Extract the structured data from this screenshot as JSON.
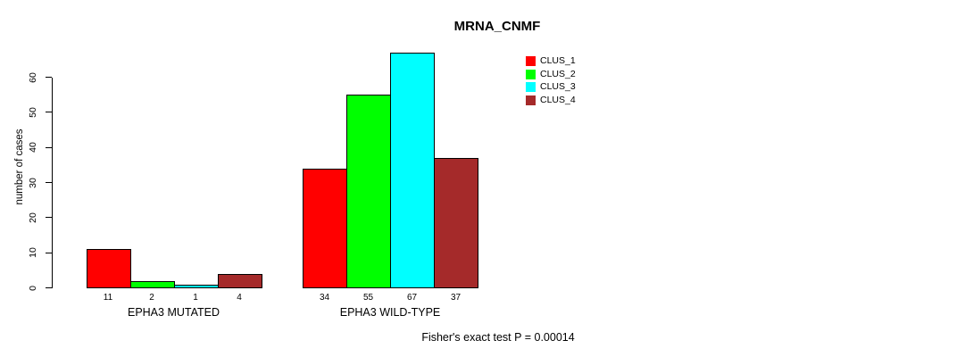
{
  "chart_data": {
    "type": "bar",
    "title": "MRNA_CNMF",
    "ylabel": "number of cases",
    "xlabel": "",
    "ylim": [
      0,
      60
    ],
    "y_ticks": [
      0,
      10,
      20,
      30,
      40,
      50,
      60
    ],
    "grid": false,
    "categories": [
      "EPHA3 MUTATED",
      "EPHA3 WILD-TYPE"
    ],
    "series": [
      {
        "name": "CLUS_1",
        "color": "#ff0000",
        "values": [
          11,
          34
        ]
      },
      {
        "name": "CLUS_2",
        "color": "#00ff00",
        "values": [
          2,
          55
        ]
      },
      {
        "name": "CLUS_3",
        "color": "#00ffff",
        "values": [
          1,
          67
        ]
      },
      {
        "name": "CLUS_4",
        "color": "#a52a2a",
        "values": [
          4,
          37
        ]
      }
    ],
    "show_bar_values": true,
    "legend_position": "top-right",
    "annotation": "Fisher's exact test P = 0.00014"
  }
}
